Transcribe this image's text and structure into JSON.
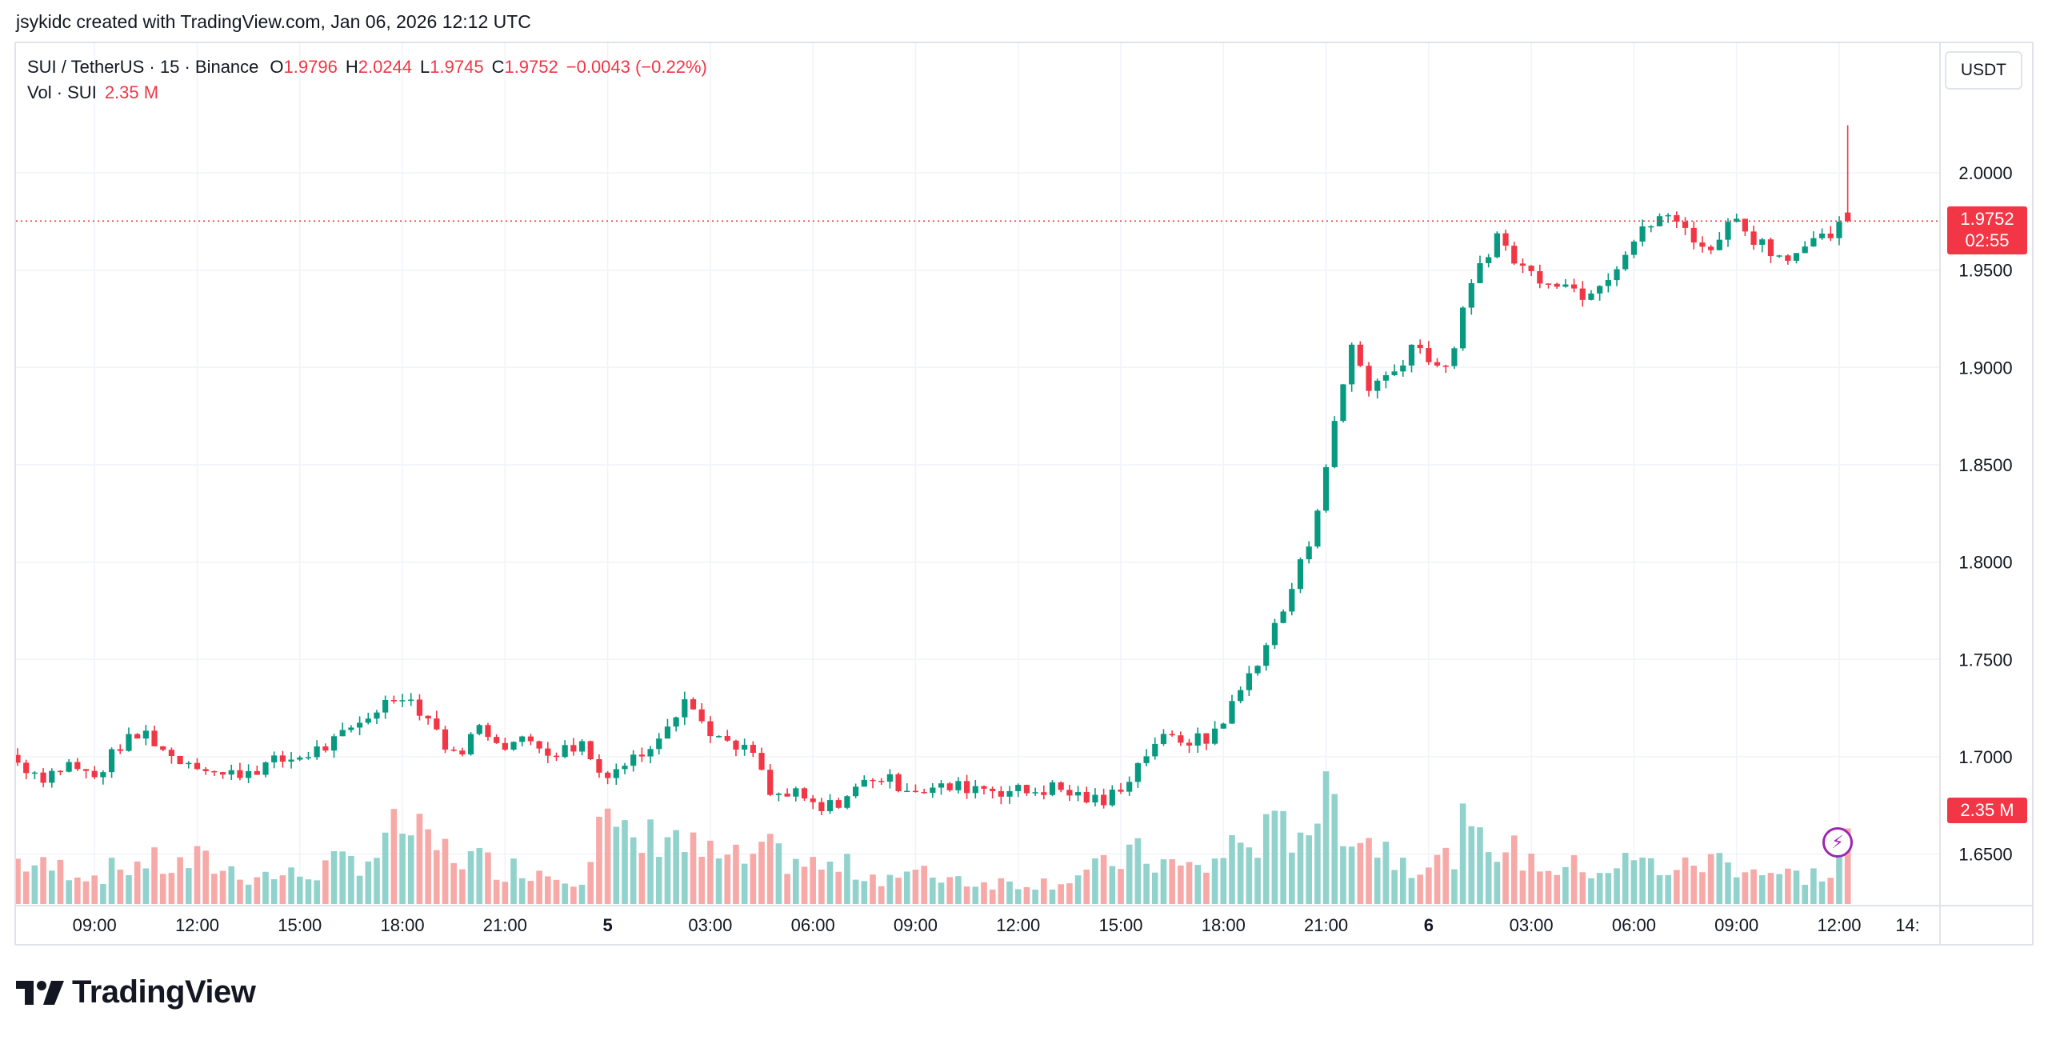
{
  "attribution": "jsykidc created with TradingView.com, Jan 06, 2026 12:12 UTC",
  "legend": {
    "symbol": "SUI / TetherUS · 15 · Binance",
    "o_label": "O",
    "o_value": "1.9796",
    "h_label": "H",
    "h_value": "2.0244",
    "l_label": "L",
    "l_value": "1.9745",
    "c_label": "C",
    "c_value": "1.9752",
    "change": "−0.0043 (−0.22%)",
    "vol_label": "Vol · SUI",
    "vol_value": "2.35 M"
  },
  "currency": "USDT",
  "last_price": {
    "price": "1.9752",
    "countdown": "02:55",
    "volume": "2.35 M"
  },
  "brand": "TradingView",
  "colors": {
    "up": "#089981",
    "down": "#f23645",
    "up_vol": "#92d2cc",
    "down_vol": "#f7a9a7",
    "grid": "#f0f3fa"
  },
  "chart_data": {
    "type": "candlestick",
    "symbol": "SUI / TetherUS",
    "interval": "15",
    "exchange": "Binance",
    "y_ticks": [
      "1.6500",
      "1.7000",
      "1.7500",
      "1.8000",
      "1.8500",
      "1.9000",
      "1.9500",
      "2.0000"
    ],
    "ylim": [
      1.62,
      2.06
    ],
    "x_ticks": [
      {
        "label": "09:00",
        "index": 9
      },
      {
        "label": "12:00",
        "index": 21
      },
      {
        "label": "15:00",
        "index": 33
      },
      {
        "label": "18:00",
        "index": 45
      },
      {
        "label": "21:00",
        "index": 57
      },
      {
        "label": "5",
        "index": 69,
        "bold": true
      },
      {
        "label": "03:00",
        "index": 81
      },
      {
        "label": "06:00",
        "index": 93
      },
      {
        "label": "09:00",
        "index": 105
      },
      {
        "label": "12:00",
        "index": 117
      },
      {
        "label": "15:00",
        "index": 129
      },
      {
        "label": "18:00",
        "index": 141
      },
      {
        "label": "21:00",
        "index": 153
      },
      {
        "label": "6",
        "index": 165,
        "bold": true
      },
      {
        "label": "03:00",
        "index": 177
      },
      {
        "label": "06:00",
        "index": 189
      },
      {
        "label": "09:00",
        "index": 201
      },
      {
        "label": "12:00",
        "index": 213
      },
      {
        "label": "14:",
        "index": 221
      }
    ],
    "anchors": [
      [
        0,
        1.697,
        0.6
      ],
      [
        3,
        1.69,
        0.5
      ],
      [
        6,
        1.696,
        0.5
      ],
      [
        9,
        1.689,
        0.4
      ],
      [
        12,
        1.706,
        0.5
      ],
      [
        15,
        1.712,
        0.6
      ],
      [
        18,
        1.7,
        0.5
      ],
      [
        21,
        1.697,
        0.6
      ],
      [
        24,
        1.69,
        0.5
      ],
      [
        27,
        1.693,
        0.4
      ],
      [
        30,
        1.697,
        0.4
      ],
      [
        33,
        1.7,
        0.4
      ],
      [
        36,
        1.705,
        0.5
      ],
      [
        39,
        1.713,
        0.6
      ],
      [
        42,
        1.725,
        0.7
      ],
      [
        45,
        1.733,
        1.1
      ],
      [
        48,
        1.72,
        0.8
      ],
      [
        51,
        1.7,
        0.7
      ],
      [
        54,
        1.715,
        0.6
      ],
      [
        57,
        1.707,
        0.5
      ],
      [
        60,
        1.708,
        0.5
      ],
      [
        63,
        1.702,
        0.4
      ],
      [
        66,
        1.707,
        0.4
      ],
      [
        68,
        1.692,
        1.3
      ],
      [
        70,
        1.694,
        0.9
      ],
      [
        73,
        1.702,
        0.8
      ],
      [
        76,
        1.718,
        1.1
      ],
      [
        78,
        1.73,
        0.8
      ],
      [
        80,
        1.718,
        0.7
      ],
      [
        83,
        1.705,
        0.6
      ],
      [
        86,
        1.702,
        0.6
      ],
      [
        88,
        1.68,
        0.7
      ],
      [
        91,
        1.68,
        0.6
      ],
      [
        94,
        1.672,
        0.5
      ],
      [
        97,
        1.68,
        0.5
      ],
      [
        100,
        1.69,
        0.4
      ],
      [
        103,
        1.686,
        0.4
      ],
      [
        106,
        1.683,
        0.4
      ],
      [
        109,
        1.684,
        0.4
      ],
      [
        112,
        1.685,
        0.3
      ],
      [
        115,
        1.683,
        0.3
      ],
      [
        118,
        1.682,
        0.3
      ],
      [
        121,
        1.684,
        0.3
      ],
      [
        124,
        1.68,
        0.4
      ],
      [
        127,
        1.676,
        0.5
      ],
      [
        130,
        1.69,
        0.7
      ],
      [
        133,
        1.708,
        0.6
      ],
      [
        136,
        1.709,
        0.5
      ],
      [
        139,
        1.708,
        0.5
      ],
      [
        142,
        1.726,
        0.8
      ],
      [
        145,
        1.75,
        0.9
      ],
      [
        148,
        1.775,
        1.0
      ],
      [
        151,
        1.81,
        1.2
      ],
      [
        154,
        1.87,
        1.4
      ],
      [
        156,
        1.912,
        1.1
      ],
      [
        158,
        1.89,
        0.9
      ],
      [
        161,
        1.898,
        0.7
      ],
      [
        163,
        1.912,
        0.6
      ],
      [
        165,
        1.906,
        0.6
      ],
      [
        167,
        1.897,
        0.6
      ],
      [
        169,
        1.928,
        1.0
      ],
      [
        171,
        1.953,
        0.8
      ],
      [
        173,
        1.968,
        0.9
      ],
      [
        175,
        1.955,
        0.7
      ],
      [
        177,
        1.948,
        0.6
      ],
      [
        180,
        1.945,
        0.5
      ],
      [
        183,
        1.938,
        0.5
      ],
      [
        186,
        1.948,
        0.5
      ],
      [
        189,
        1.965,
        0.6
      ],
      [
        192,
        1.978,
        0.5
      ],
      [
        195,
        1.972,
        0.5
      ],
      [
        198,
        1.958,
        0.6
      ],
      [
        200,
        1.978,
        0.6
      ],
      [
        203,
        1.967,
        0.5
      ],
      [
        206,
        1.958,
        0.4
      ],
      [
        209,
        1.96,
        0.4
      ],
      [
        212,
        1.968,
        0.4
      ],
      [
        214,
        1.9752,
        1.05
      ]
    ]
  }
}
